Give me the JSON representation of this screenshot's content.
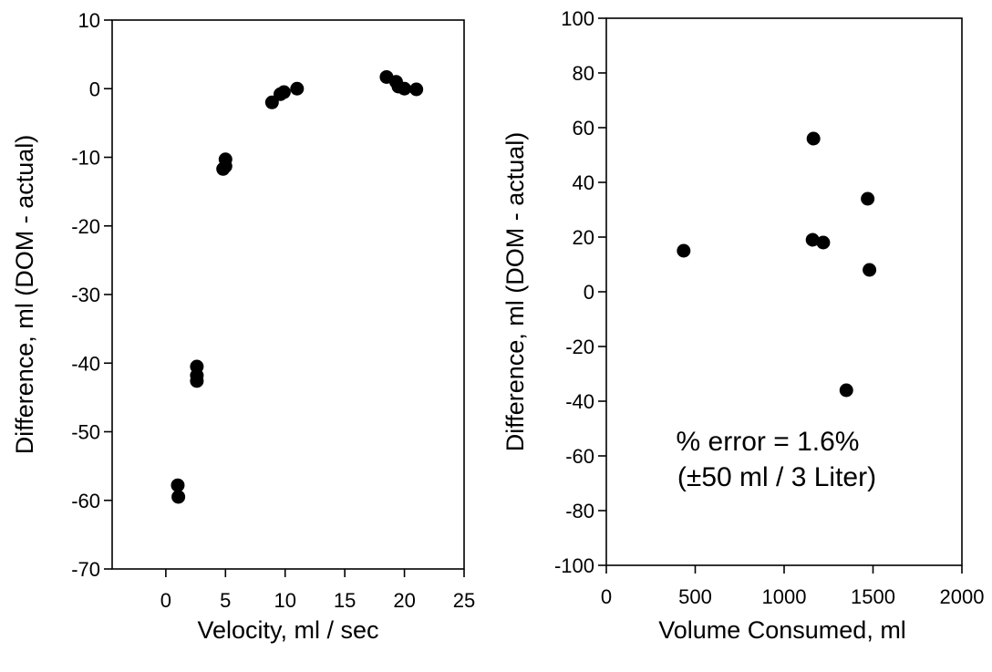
{
  "chart_data": [
    {
      "type": "scatter",
      "title": "",
      "xlabel": "Velocity, ml / sec",
      "ylabel": "Difference, ml (DOM - actual)",
      "xlim": [
        -4.5,
        25
      ],
      "ylim": [
        -70,
        10
      ],
      "x_ticks": [
        0,
        5,
        10,
        15,
        20,
        25
      ],
      "x_tick_labels": [
        "0",
        "5",
        "10",
        "15",
        "20",
        "25"
      ],
      "y_ticks": [
        10,
        0,
        -10,
        -20,
        -30,
        -40,
        -50,
        -60,
        -70
      ],
      "y_tick_labels": [
        "10",
        "0",
        "-10",
        "-20",
        "-30",
        "-40",
        "-50",
        "-60",
        "-70"
      ],
      "marker_color": "#000000",
      "grid": false,
      "legend": "none",
      "points": [
        {
          "x": 1.0,
          "y": -57.8
        },
        {
          "x": 1.05,
          "y": -59.5
        },
        {
          "x": 2.6,
          "y": -40.5
        },
        {
          "x": 2.6,
          "y": -41.8
        },
        {
          "x": 2.6,
          "y": -42.6
        },
        {
          "x": 5.0,
          "y": -10.3
        },
        {
          "x": 4.8,
          "y": -11.7
        },
        {
          "x": 5.0,
          "y": -11.3
        },
        {
          "x": 8.9,
          "y": -2.0
        },
        {
          "x": 9.6,
          "y": -0.8
        },
        {
          "x": 9.9,
          "y": -0.5
        },
        {
          "x": 11.0,
          "y": 0.0
        },
        {
          "x": 18.5,
          "y": 1.7
        },
        {
          "x": 19.3,
          "y": 1.0
        },
        {
          "x": 19.5,
          "y": 0.3
        },
        {
          "x": 20.0,
          "y": 0.0
        },
        {
          "x": 21.0,
          "y": -0.1
        }
      ]
    },
    {
      "type": "scatter",
      "title": "",
      "xlabel": "Volume Consumed, ml",
      "ylabel": "Difference, ml (DOM - actual)",
      "xlim": [
        0,
        2000
      ],
      "ylim": [
        -100,
        100
      ],
      "x_ticks": [
        0,
        500,
        1000,
        1500,
        2000
      ],
      "x_tick_labels": [
        "0",
        "500",
        "1000",
        "1500",
        "2000"
      ],
      "y_ticks": [
        100,
        80,
        60,
        40,
        20,
        0,
        -20,
        -40,
        -60,
        -80,
        -100
      ],
      "y_tick_labels": [
        "100",
        "80",
        "60",
        "40",
        "20",
        "0",
        "-20",
        "-40",
        "-60",
        "-80",
        "-100"
      ],
      "marker_color": "#000000",
      "grid": false,
      "legend": "none",
      "annotation": [
        "% error = 1.6%",
        "(±50 ml / 3 Liter)"
      ],
      "points": [
        {
          "x": 435,
          "y": 15
        },
        {
          "x": 1165,
          "y": 56
        },
        {
          "x": 1160,
          "y": 19
        },
        {
          "x": 1220,
          "y": 18
        },
        {
          "x": 1470,
          "y": 34
        },
        {
          "x": 1480,
          "y": 8
        },
        {
          "x": 1350,
          "y": -36
        }
      ]
    }
  ]
}
